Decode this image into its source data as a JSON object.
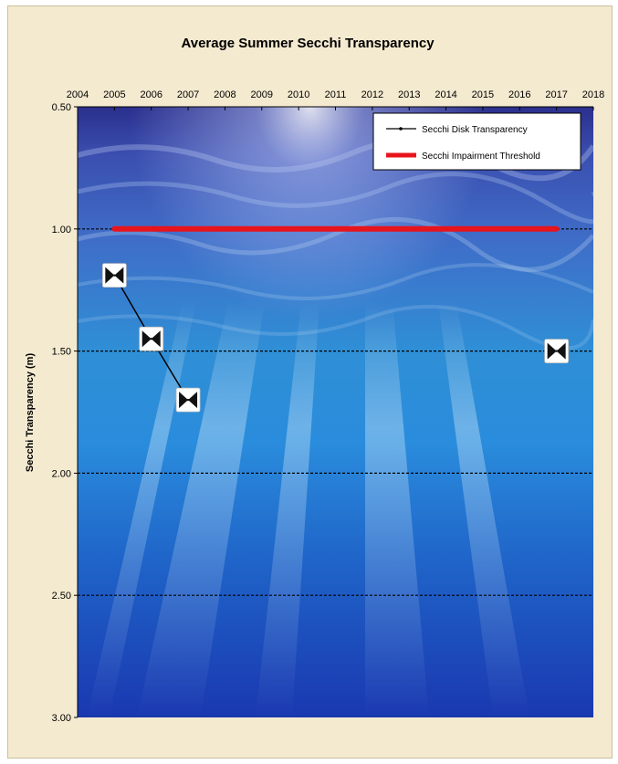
{
  "chart_data": {
    "type": "line",
    "title": "Average Summer Secchi Transparency",
    "xlabel": "",
    "ylabel": "Secchi Transparency (m)",
    "xlim": [
      2004,
      2018
    ],
    "ylim": [
      3.0,
      0.5
    ],
    "y_inverted": true,
    "x_axis_position": "top",
    "x_ticks": [
      "2004",
      "2005",
      "2006",
      "2007",
      "2008",
      "2009",
      "2010",
      "2011",
      "2012",
      "2013",
      "2014",
      "2015",
      "2016",
      "2017",
      "2018"
    ],
    "y_ticks": [
      "0.50",
      "1.00",
      "1.50",
      "2.00",
      "2.50",
      "3.00"
    ],
    "gridlines": "horizontal dashed",
    "legend_position": "top-right",
    "series": [
      {
        "name": "Secchi Disk Transparency",
        "color": "#000000",
        "marker": "secchi-disk-icon",
        "points": [
          {
            "x": 2005,
            "y": 1.19
          },
          {
            "x": 2006,
            "y": 1.45
          },
          {
            "x": 2007,
            "y": 1.7
          },
          {
            "x": 2017,
            "y": 1.5
          }
        ],
        "segments": [
          [
            0,
            1,
            2
          ],
          [
            3
          ]
        ]
      },
      {
        "name": "Secchi Impairment Threshold",
        "color": "#e8141b",
        "points": [
          {
            "x": 2005,
            "y": 1.0
          },
          {
            "x": 2017,
            "y": 1.0
          }
        ]
      }
    ]
  }
}
